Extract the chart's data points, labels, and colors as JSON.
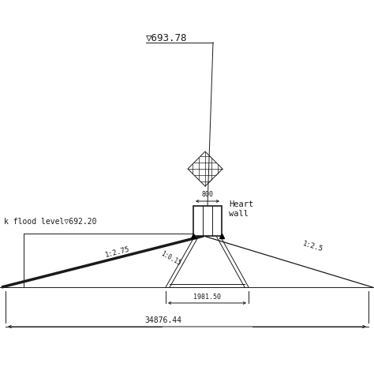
{
  "bg_color": "#ffffff",
  "line_color": "#1a1a1a",
  "title_label": "▽693.78",
  "flood_label": "k flood level▽692.20",
  "slope_left_label": "1:2.75",
  "slope_right_label": "1:2.5",
  "wall_label_line1": "Heart",
  "wall_label_line2": "wall",
  "top_width_label": "800",
  "heart_wall_slope_label": "1:0.15",
  "base_width_label": "1981.50",
  "total_width_label": "34876.44"
}
